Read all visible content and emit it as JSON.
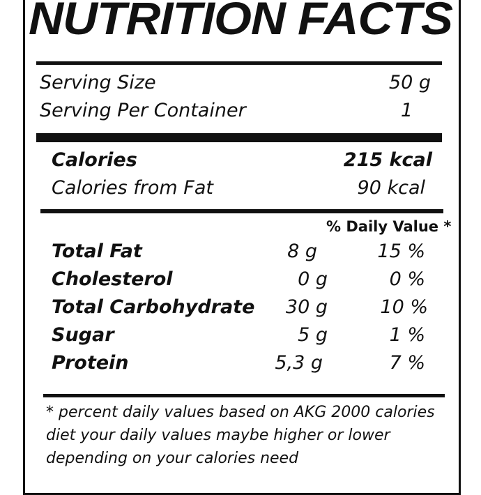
{
  "title": "NUTRITION FACTS",
  "serving": {
    "size_label": "Serving Size",
    "size_value": "50 g",
    "per_container_label": "Serving Per Container",
    "per_container_value": "1"
  },
  "calories": {
    "label": "Calories",
    "value": "215 kcal",
    "from_fat_label": "Calories from Fat",
    "from_fat_value": "90 kcal"
  },
  "daily_value_header": "% Daily Value *",
  "nutrients": [
    {
      "name": "Total Fat",
      "amount": "8 g",
      "percent": "15 %"
    },
    {
      "name": "Cholesterol",
      "amount": "0 g",
      "percent": "0 %"
    },
    {
      "name": "Total Carbohydrate",
      "amount": "30 g",
      "percent": "10 %"
    },
    {
      "name": "Sugar",
      "amount": "5 g",
      "percent": "1 %"
    },
    {
      "name": "Protein",
      "amount": "5,3 g",
      "percent": "7 %"
    }
  ],
  "footnote": {
    "line1": "* percent daily values based on AKG 2000 calories",
    "line2": "diet your daily values maybe higher or lower",
    "line3": "depending on your calories need"
  }
}
